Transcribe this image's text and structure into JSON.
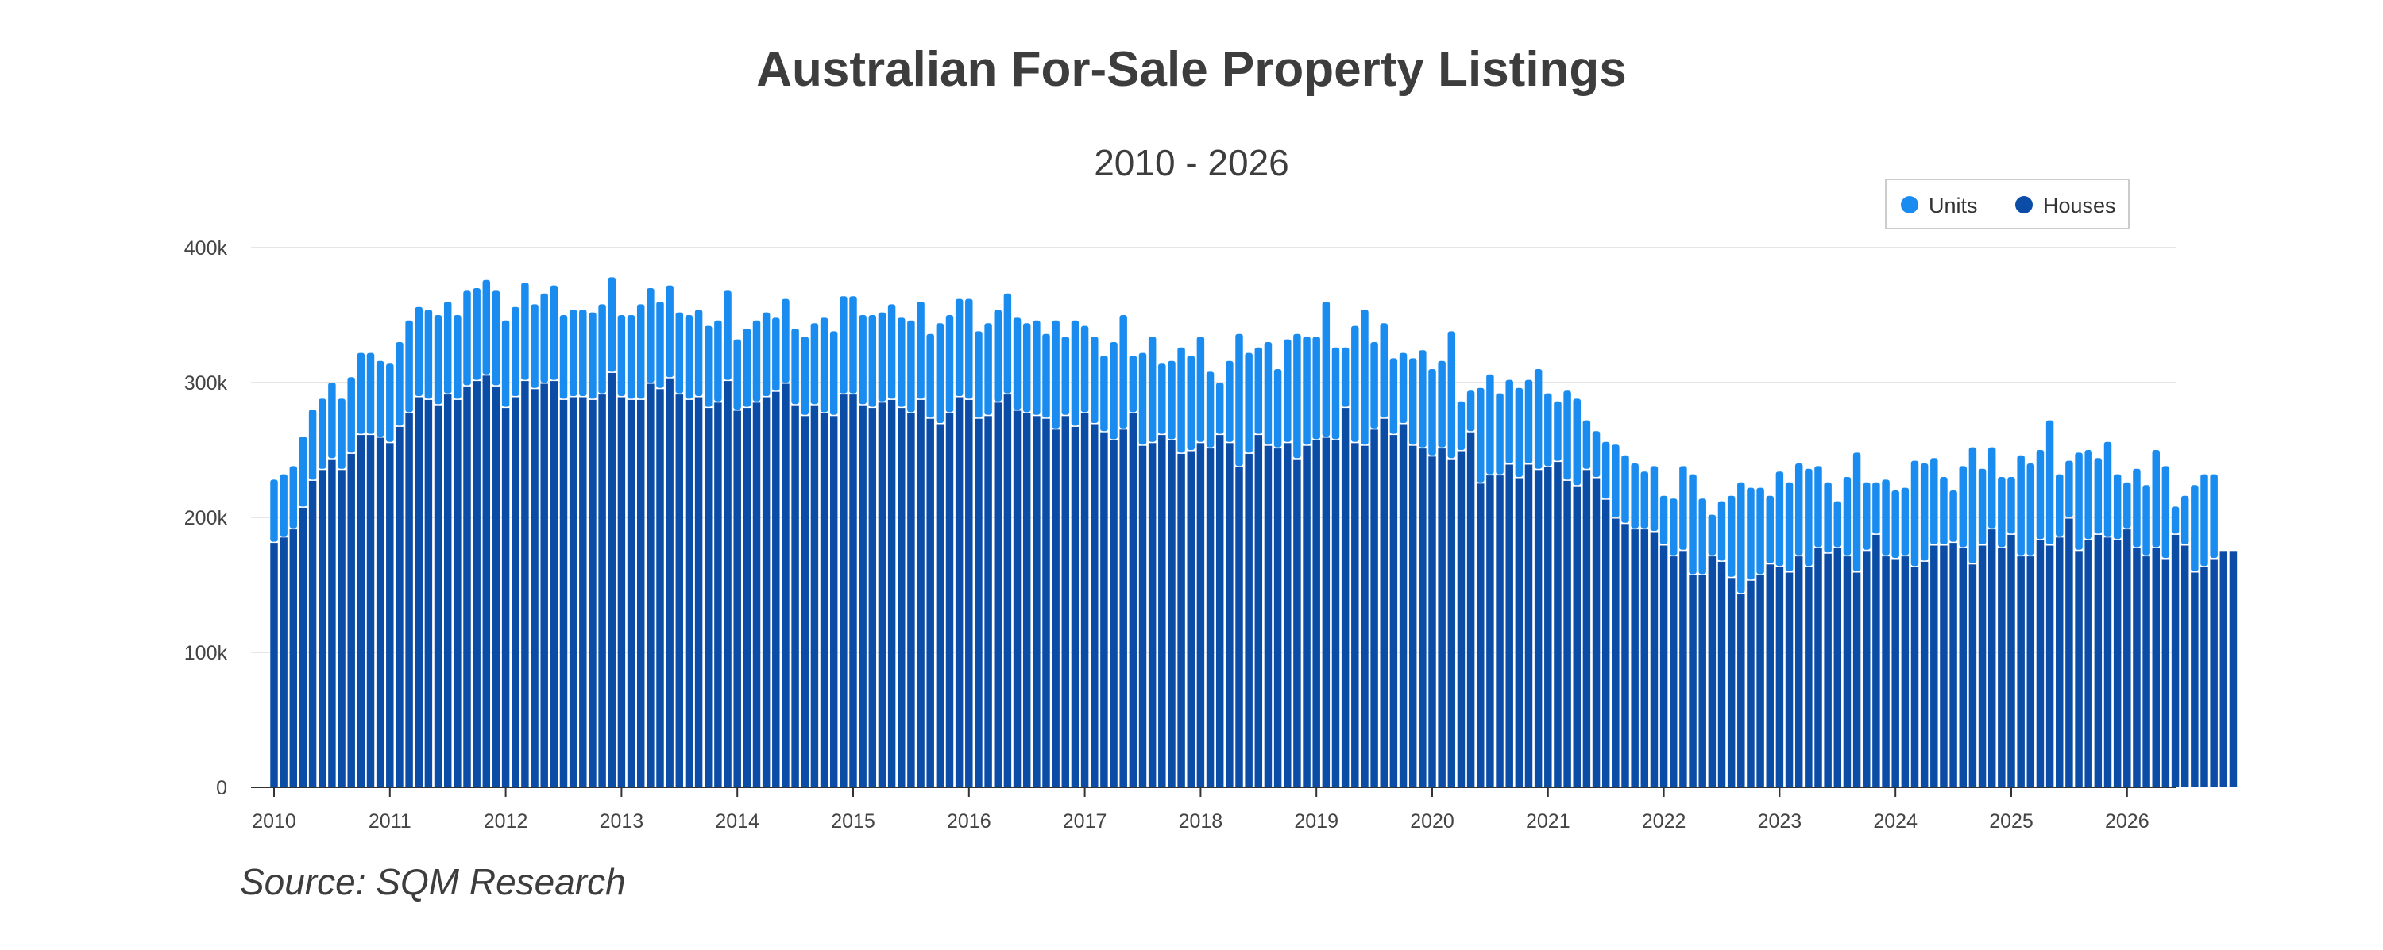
{
  "chart_data": {
    "type": "bar",
    "stacked": true,
    "title": "Australian For-Sale Property Listings",
    "subtitle": "2010 - 2026",
    "source": "Source: SQM Research",
    "legend": {
      "placement": "top-right",
      "items": [
        {
          "name": "Units",
          "color": "#1a8cf0"
        },
        {
          "name": "Houses",
          "color": "#0b4da6"
        }
      ]
    },
    "x_tick_labels": [
      "2010",
      "2011",
      "2012",
      "2013",
      "2014",
      "2015",
      "2016",
      "2017",
      "2018",
      "2019",
      "2020",
      "2021",
      "2022",
      "2023",
      "2024",
      "2025",
      "2026"
    ],
    "y_tick_labels": [
      "0",
      "100k",
      "200k",
      "300k",
      "400k"
    ],
    "y_ticks": [
      0,
      100000,
      200000,
      300000,
      400000
    ],
    "ylim": [
      0,
      400000
    ],
    "grid": true,
    "x_start": "2010-01",
    "houses_k": [
      182,
      186,
      192,
      208,
      228,
      236,
      244,
      236,
      248,
      262,
      262,
      260,
      256,
      268,
      278,
      290,
      288,
      284,
      292,
      288,
      298,
      302,
      306,
      298,
      282,
      290,
      302,
      296,
      300,
      302,
      288,
      290,
      290,
      288,
      292,
      308,
      290,
      288,
      288,
      300,
      296,
      304,
      292,
      288,
      290,
      282,
      286,
      302,
      280,
      282,
      286,
      290,
      294,
      300,
      284,
      276,
      284,
      278,
      276,
      292,
      292,
      284,
      282,
      286,
      288,
      282,
      278,
      288,
      274,
      270,
      278,
      290,
      288,
      274,
      276,
      286,
      292,
      280,
      278,
      276,
      274,
      266,
      276,
      268,
      278,
      270,
      264,
      258,
      266,
      278,
      254,
      256,
      262,
      258,
      248,
      250,
      256,
      252,
      262,
      256,
      238,
      248,
      262,
      254,
      252,
      256,
      244,
      254,
      258,
      260,
      258,
      282,
      256,
      254,
      266,
      274,
      262,
      270,
      254,
      252,
      246,
      252,
      244,
      250,
      264,
      226,
      232,
      232,
      240,
      230,
      240,
      236,
      238,
      242,
      228,
      224,
      236,
      230,
      214,
      200,
      196,
      192,
      192,
      190,
      180,
      172,
      176,
      158,
      158,
      172,
      168,
      156,
      144,
      154,
      158,
      166,
      164,
      160,
      172,
      164,
      178,
      174,
      178,
      172,
      160,
      176,
      188,
      172,
      170,
      172,
      164,
      168,
      180,
      180,
      182,
      178,
      166,
      180,
      192,
      178,
      188,
      172,
      172,
      184,
      180,
      186,
      200,
      176,
      184,
      188,
      186,
      184,
      192,
      178,
      172,
      178,
      170,
      188,
      180,
      160,
      164,
      170,
      176,
      176
    ],
    "totals_k": [
      228,
      232,
      238,
      260,
      280,
      288,
      300,
      288,
      304,
      322,
      322,
      316,
      314,
      330,
      346,
      356,
      354,
      350,
      360,
      350,
      368,
      370,
      376,
      368,
      346,
      356,
      374,
      358,
      366,
      372,
      350,
      354,
      354,
      352,
      358,
      378,
      350,
      350,
      358,
      370,
      360,
      372,
      352,
      350,
      354,
      342,
      346,
      368,
      332,
      340,
      346,
      352,
      348,
      362,
      340,
      334,
      344,
      348,
      338,
      364,
      364,
      350,
      350,
      352,
      358,
      348,
      346,
      360,
      336,
      344,
      350,
      362,
      362,
      338,
      344,
      354,
      366,
      348,
      344,
      346,
      336,
      346,
      334,
      346,
      342,
      334,
      320,
      330,
      350,
      320,
      322,
      334,
      314,
      316,
      326,
      320,
      334,
      308,
      300,
      316,
      336,
      322,
      326,
      330,
      310,
      332,
      336,
      334,
      334,
      360,
      326,
      326,
      342,
      354,
      330,
      344,
      318,
      322,
      318,
      324,
      310,
      316,
      338,
      286,
      294,
      296,
      306,
      292,
      302,
      296,
      302,
      310,
      292,
      286,
      294,
      288,
      272,
      264,
      256,
      254,
      246,
      240,
      234,
      238,
      216,
      214,
      238,
      232,
      214,
      202,
      212,
      216,
      226,
      222,
      222,
      216,
      234,
      226,
      240,
      236,
      238,
      226,
      212,
      230,
      248,
      226,
      226,
      228,
      220,
      222,
      242,
      240,
      244,
      230,
      220,
      238,
      252,
      236,
      252,
      230,
      230,
      246,
      240,
      250,
      272,
      232,
      242,
      248,
      250,
      244,
      256,
      232,
      226,
      236,
      224,
      250,
      238,
      208,
      216,
      224,
      232,
      232
    ]
  }
}
